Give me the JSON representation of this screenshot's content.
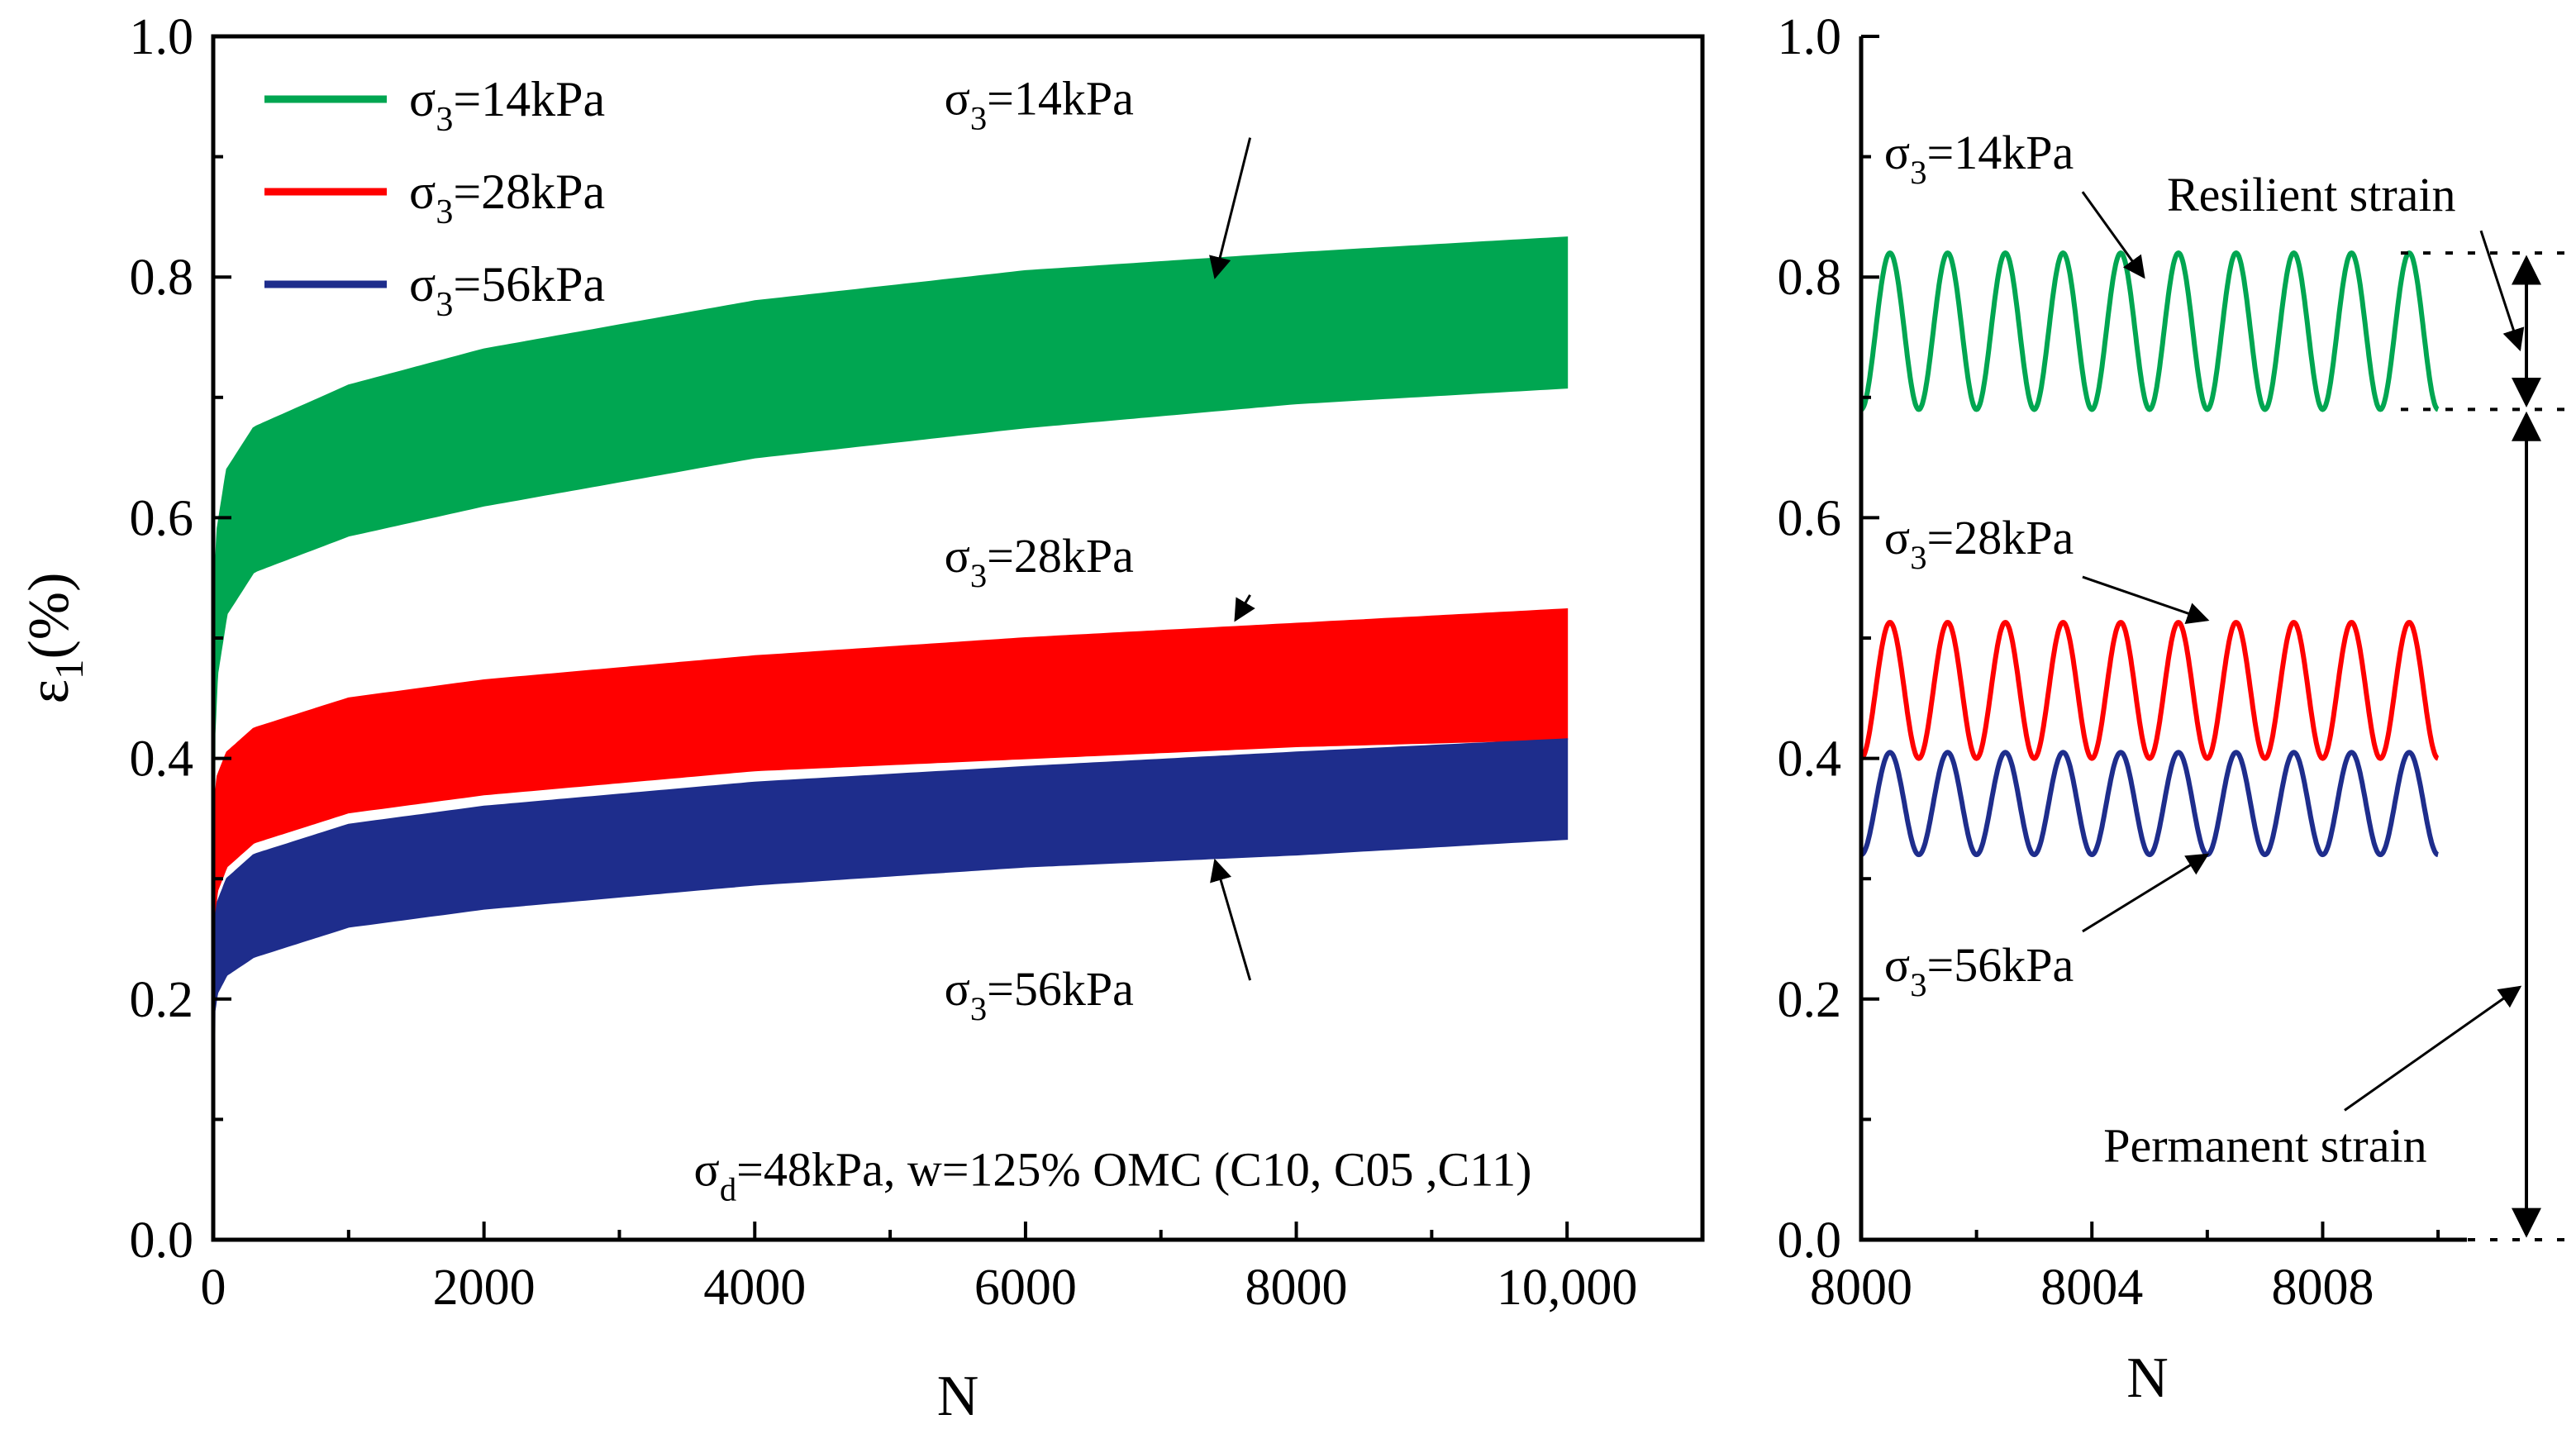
{
  "chart_data": [
    {
      "type": "area",
      "title": "",
      "xlabel": "N",
      "ylabel": "ε1(%)",
      "xlim": [
        0,
        11000
      ],
      "ylim": [
        0.0,
        1.0
      ],
      "xticks": [
        {
          "value": 0,
          "label": "0"
        },
        {
          "value": 2000,
          "label": "2000"
        },
        {
          "value": 4000,
          "label": "4000"
        },
        {
          "value": 6000,
          "label": "6000"
        },
        {
          "value": 8000,
          "label": "8000"
        },
        {
          "value": 10000,
          "label": "10,000"
        }
      ],
      "yticks": [
        {
          "value": 0.0,
          "label": "0.0"
        },
        {
          "value": 0.2,
          "label": "0.2"
        },
        {
          "value": 0.4,
          "label": "0.4"
        },
        {
          "value": 0.6,
          "label": "0.6"
        },
        {
          "value": 0.8,
          "label": "0.8"
        },
        {
          "value": 1.0,
          "label": "1.0"
        }
      ],
      "legend": {
        "position": "top-left",
        "entries": [
          {
            "prefix": "σ",
            "sub": "3",
            "suffix": "=14kPa",
            "color": "#00a651"
          },
          {
            "prefix": "σ",
            "sub": "3",
            "suffix": "=28kPa",
            "color": "#ff0000"
          },
          {
            "prefix": "σ",
            "sub": "3",
            "suffix": "=56kPa",
            "color": "#1e2d8c"
          }
        ]
      },
      "series": [
        {
          "name": "σ3=14kPa",
          "color": "#00a651",
          "upper": {
            "x": [
              0,
              10,
              30,
              100,
              300,
              1000,
              2000,
              4000,
              6000,
              8000,
              10000
            ],
            "y": [
              0.0,
              0.54,
              0.59,
              0.64,
              0.675,
              0.71,
              0.74,
              0.78,
              0.805,
              0.82,
              0.833
            ]
          },
          "lower": {
            "x": [
              0,
              10,
              30,
              100,
              300,
              1000,
              2000,
              4000,
              6000,
              8000,
              10000
            ],
            "y": [
              0.0,
              0.42,
              0.47,
              0.52,
              0.555,
              0.585,
              0.61,
              0.65,
              0.675,
              0.695,
              0.708
            ]
          }
        },
        {
          "name": "σ3=28kPa",
          "color": "#ff0000",
          "upper": {
            "x": [
              0,
              10,
              30,
              100,
              300,
              1000,
              2000,
              4000,
              6000,
              8000,
              10000
            ],
            "y": [
              0.0,
              0.36,
              0.385,
              0.405,
              0.425,
              0.45,
              0.465,
              0.485,
              0.5,
              0.512,
              0.524
            ]
          },
          "lower": {
            "x": [
              0,
              10,
              30,
              100,
              300,
              1000,
              2000,
              4000,
              6000,
              8000,
              10000
            ],
            "y": [
              0.0,
              0.27,
              0.29,
              0.31,
              0.33,
              0.355,
              0.37,
              0.39,
              0.4,
              0.41,
              0.416
            ]
          }
        },
        {
          "name": "σ3=56kPa",
          "color": "#1e2d8c",
          "upper": {
            "x": [
              0,
              10,
              30,
              100,
              300,
              1000,
              2000,
              4000,
              6000,
              8000,
              10000
            ],
            "y": [
              0.0,
              0.26,
              0.28,
              0.3,
              0.32,
              0.345,
              0.36,
              0.38,
              0.393,
              0.405,
              0.416
            ]
          },
          "lower": {
            "x": [
              0,
              10,
              30,
              100,
              300,
              1000,
              2000,
              4000,
              6000,
              8000,
              10000
            ],
            "y": [
              0.0,
              0.19,
              0.205,
              0.22,
              0.235,
              0.26,
              0.275,
              0.295,
              0.31,
              0.32,
              0.333
            ]
          }
        }
      ],
      "annotations": [
        {
          "prefix": "σ",
          "sub": "3",
          "suffix": "=14kPa",
          "text_x": 5400,
          "text_y": 0.935,
          "arrow_to": [
            7400,
            0.8
          ]
        },
        {
          "prefix": "σ",
          "sub": "3",
          "suffix": "=28kPa",
          "text_x": 5400,
          "text_y": 0.555,
          "arrow_to": [
            7550,
            0.515
          ]
        },
        {
          "prefix": "σ",
          "sub": "3",
          "suffix": "=56kPa",
          "text_x": 5400,
          "text_y": 0.195,
          "arrow_to": [
            7400,
            0.315
          ]
        },
        {
          "prefix": "σ",
          "sub": "d",
          "suffix": "=48kPa, w=125% OMC (C10, C05 ,C11)",
          "text_x": 3550,
          "text_y": 0.045
        }
      ]
    },
    {
      "type": "line",
      "title": "",
      "xlabel": "N",
      "ylabel": "",
      "xlim": [
        8000,
        8010.5
      ],
      "ylim": [
        0.0,
        1.0
      ],
      "xticks": [
        {
          "value": 8000,
          "label": "8000"
        },
        {
          "value": 8004,
          "label": "8004"
        },
        {
          "value": 8008,
          "label": "8008"
        }
      ],
      "yticks": [
        {
          "value": 0.0,
          "label": "0.0"
        },
        {
          "value": 0.2,
          "label": "0.2"
        },
        {
          "value": 0.4,
          "label": "0.4"
        },
        {
          "value": 0.6,
          "label": "0.6"
        },
        {
          "value": 0.8,
          "label": "0.8"
        },
        {
          "value": 1.0,
          "label": "1.0"
        }
      ],
      "series": [
        {
          "name": "σ3=14kPa",
          "color": "#00a651",
          "x_start": 8000,
          "x_end": 8010,
          "period": 1,
          "min": 0.69,
          "max": 0.82
        },
        {
          "name": "σ3=28kPa",
          "color": "#ff0000",
          "x_start": 8000,
          "x_end": 8010,
          "period": 1,
          "min": 0.4,
          "max": 0.513
        },
        {
          "name": "σ3=56kPa",
          "color": "#1e2d8c",
          "x_start": 8000,
          "x_end": 8010,
          "period": 1,
          "min": 0.32,
          "max": 0.405
        }
      ],
      "annotations": [
        {
          "prefix": "σ",
          "sub": "3",
          "suffix": "=14kPa",
          "text_x": 8000.4,
          "text_y": 0.89,
          "arrow_to": [
            8004.9,
            0.8
          ]
        },
        {
          "prefix": "σ",
          "sub": "3",
          "suffix": "=28kPa",
          "text_x": 8000.4,
          "text_y": 0.57,
          "arrow_to": [
            8006.0,
            0.515
          ]
        },
        {
          "prefix": "σ",
          "sub": "3",
          "suffix": "=56kPa",
          "text_x": 8000.4,
          "text_y": 0.215,
          "arrow_to": [
            8006.0,
            0.32
          ]
        },
        {
          "label": "Resilient strain",
          "text_x": 8005.3,
          "text_y": 0.855,
          "arrow_to": [
            8010.5,
            0.74
          ]
        },
        {
          "label": "Permanent strain",
          "text_x": 8004.2,
          "text_y": 0.065,
          "arrow_to": [
            8010.5,
            0.21
          ]
        }
      ],
      "reference_levels": [
        0.82,
        0.69,
        0.0
      ],
      "span_arrows": [
        {
          "name": "resilient",
          "from": 0.82,
          "to": 0.69
        },
        {
          "name": "permanent",
          "from": 0.69,
          "to": 0.0
        }
      ]
    }
  ]
}
